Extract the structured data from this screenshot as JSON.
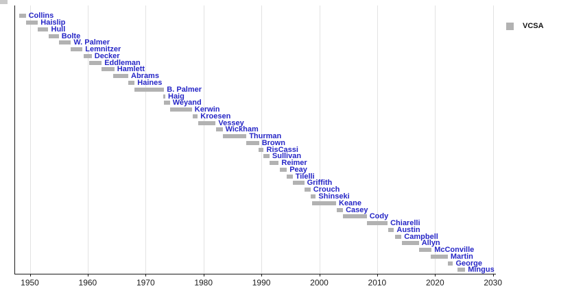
{
  "legend": {
    "label": "VCSA",
    "swatch_color": "#b2b2b2"
  },
  "colors": {
    "bar": "#b2b2b2",
    "bar_label": "#2626c6",
    "gridline": "#e2e2e2",
    "axis": "#1a1a1a",
    "tick_text": "#1a1a1a"
  },
  "chart_data": {
    "type": "bar",
    "subtype": "horizontal-timeline-gantt",
    "title": "",
    "xlabel": "",
    "ylabel": "",
    "legend_entries": [
      "VCSA"
    ],
    "legend_position": "top-right",
    "grid": true,
    "axis": {
      "xlim": [
        1947.3,
        2030.5
      ],
      "tick_values": [
        1950,
        1960,
        1970,
        1980,
        1990,
        2000,
        2010,
        2020,
        2030
      ],
      "tick_labels": [
        "1950",
        "1960",
        "1970",
        "1980",
        "1990",
        "2000",
        "2010",
        "2020",
        "2030"
      ]
    },
    "bars": [
      {
        "label": "Collins",
        "start": 1948.1,
        "end": 1949.3
      },
      {
        "label": "Haislip",
        "start": 1949.3,
        "end": 1951.4
      },
      {
        "label": "Hull",
        "start": 1951.4,
        "end": 1953.2
      },
      {
        "label": "Bolte",
        "start": 1953.2,
        "end": 1955.0
      },
      {
        "label": "W. Palmer",
        "start": 1955.0,
        "end": 1957.1
      },
      {
        "label": "Lemnitzer",
        "start": 1957.1,
        "end": 1959.1
      },
      {
        "label": "Decker",
        "start": 1959.3,
        "end": 1960.7
      },
      {
        "label": "Eddleman",
        "start": 1960.3,
        "end": 1962.4
      },
      {
        "label": "Hamlett",
        "start": 1962.4,
        "end": 1964.6
      },
      {
        "label": "Abrams",
        "start": 1964.4,
        "end": 1967.0
      },
      {
        "label": "Haines",
        "start": 1967.0,
        "end": 1968.1
      },
      {
        "label": "B. Palmer",
        "start": 1968.1,
        "end": 1973.2
      },
      {
        "label": "Haig",
        "start": 1973.0,
        "end": 1973.4
      },
      {
        "label": "Weyand",
        "start": 1973.1,
        "end": 1974.2
      },
      {
        "label": "Kerwin",
        "start": 1974.2,
        "end": 1978.0
      },
      {
        "label": "Kroesen",
        "start": 1978.1,
        "end": 1979.0
      },
      {
        "label": "Vessey",
        "start": 1979.1,
        "end": 1982.1
      },
      {
        "label": "Wickham",
        "start": 1982.2,
        "end": 1983.3
      },
      {
        "label": "Thurman",
        "start": 1983.3,
        "end": 1987.4
      },
      {
        "label": "Brown",
        "start": 1987.4,
        "end": 1989.6
      },
      {
        "label": "RisCassi",
        "start": 1989.5,
        "end": 1990.4
      },
      {
        "label": "Sullivan",
        "start": 1990.3,
        "end": 1991.4
      },
      {
        "label": "Reimer",
        "start": 1991.4,
        "end": 1993.0
      },
      {
        "label": "Peay",
        "start": 1993.2,
        "end": 1994.4
      },
      {
        "label": "Tilelli",
        "start": 1994.4,
        "end": 1995.4
      },
      {
        "label": "Griffith",
        "start": 1995.4,
        "end": 1997.4
      },
      {
        "label": "Crouch",
        "start": 1997.4,
        "end": 1998.5
      },
      {
        "label": "Shinseki",
        "start": 1998.5,
        "end": 1999.4
      },
      {
        "label": "Keane",
        "start": 1998.8,
        "end": 2002.9
      },
      {
        "label": "Casey",
        "start": 2003.0,
        "end": 2004.1
      },
      {
        "label": "Cody",
        "start": 2004.1,
        "end": 2008.2
      },
      {
        "label": "Chiarelli",
        "start": 2008.2,
        "end": 2011.8
      },
      {
        "label": "Austin",
        "start": 2011.9,
        "end": 2012.9
      },
      {
        "label": "Campbell",
        "start": 2013.1,
        "end": 2014.2
      },
      {
        "label": "Allyn",
        "start": 2014.3,
        "end": 2017.2
      },
      {
        "label": "McConville",
        "start": 2017.2,
        "end": 2019.4
      },
      {
        "label": "Martin",
        "start": 2019.3,
        "end": 2022.2
      },
      {
        "label": "George",
        "start": 2022.2,
        "end": 2023.1
      },
      {
        "label": "Mingus",
        "start": 2023.9,
        "end": 2025.2
      }
    ]
  }
}
